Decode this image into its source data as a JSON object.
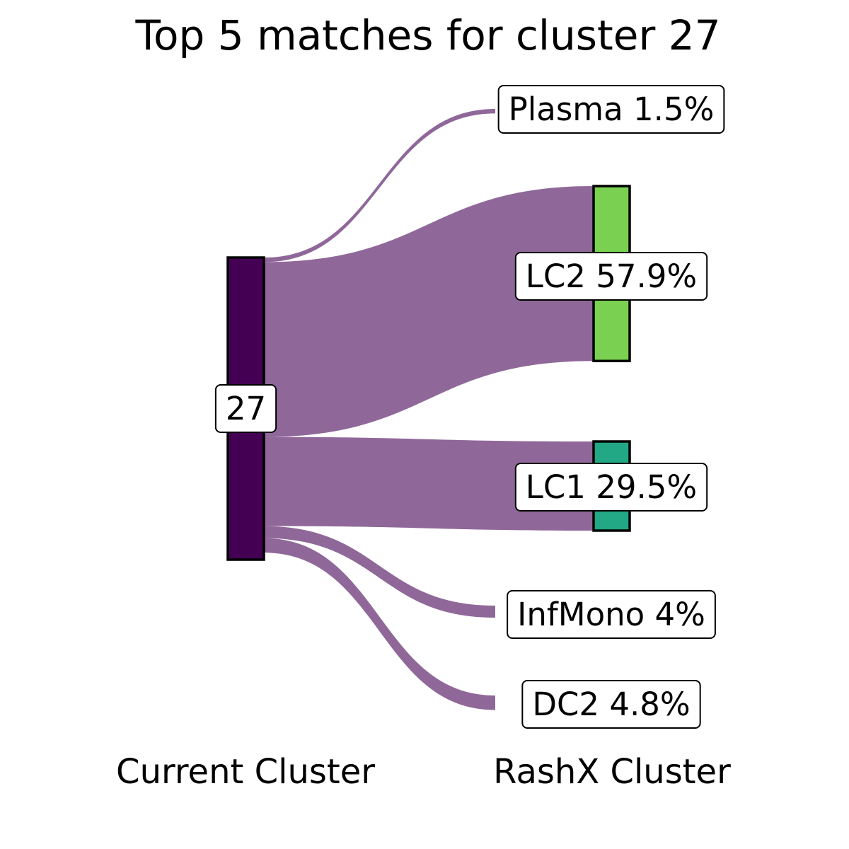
{
  "chart_data": {
    "type": "sankey",
    "title": "Top 5 matches for cluster 27",
    "axis_labels": [
      "Current Cluster",
      "RashX Cluster"
    ],
    "source": {
      "name": "27",
      "color": "#440154"
    },
    "link_color": "#8f6899",
    "targets": [
      {
        "name": "Plasma",
        "percent": 1.5,
        "label": "Plasma 1.5%",
        "color": "#ffffff",
        "node_visible": false
      },
      {
        "name": "LC2",
        "percent": 57.9,
        "label": "LC2 57.9%",
        "color": "#7ad151",
        "node_visible": true
      },
      {
        "name": "LC1",
        "percent": 29.5,
        "label": "LC1 29.5%",
        "color": "#22a884",
        "node_visible": true
      },
      {
        "name": "InfMono",
        "percent": 4,
        "label": "InfMono 4%",
        "color": "#ffffff",
        "node_visible": false
      },
      {
        "name": "DC2",
        "percent": 4.8,
        "label": "DC2 4.8%",
        "color": "#ffffff",
        "node_visible": false
      }
    ]
  }
}
